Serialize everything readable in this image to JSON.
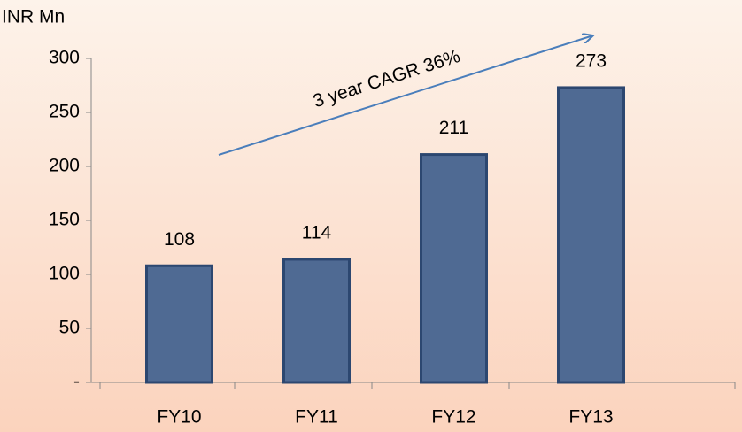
{
  "chart_data": {
    "type": "bar",
    "y_axis_label": "INR Mn",
    "annotation": "3 year CAGR 36%",
    "categories": [
      "FY10",
      "FY11",
      "FY12",
      "FY13"
    ],
    "values": [
      108,
      114,
      211,
      273
    ],
    "color": "#4f6a93",
    "ylim": [
      0,
      300
    ],
    "yticks": [
      {
        "value": 0,
        "label": "-"
      },
      50,
      100,
      150,
      200,
      250,
      300
    ],
    "grid": false
  }
}
